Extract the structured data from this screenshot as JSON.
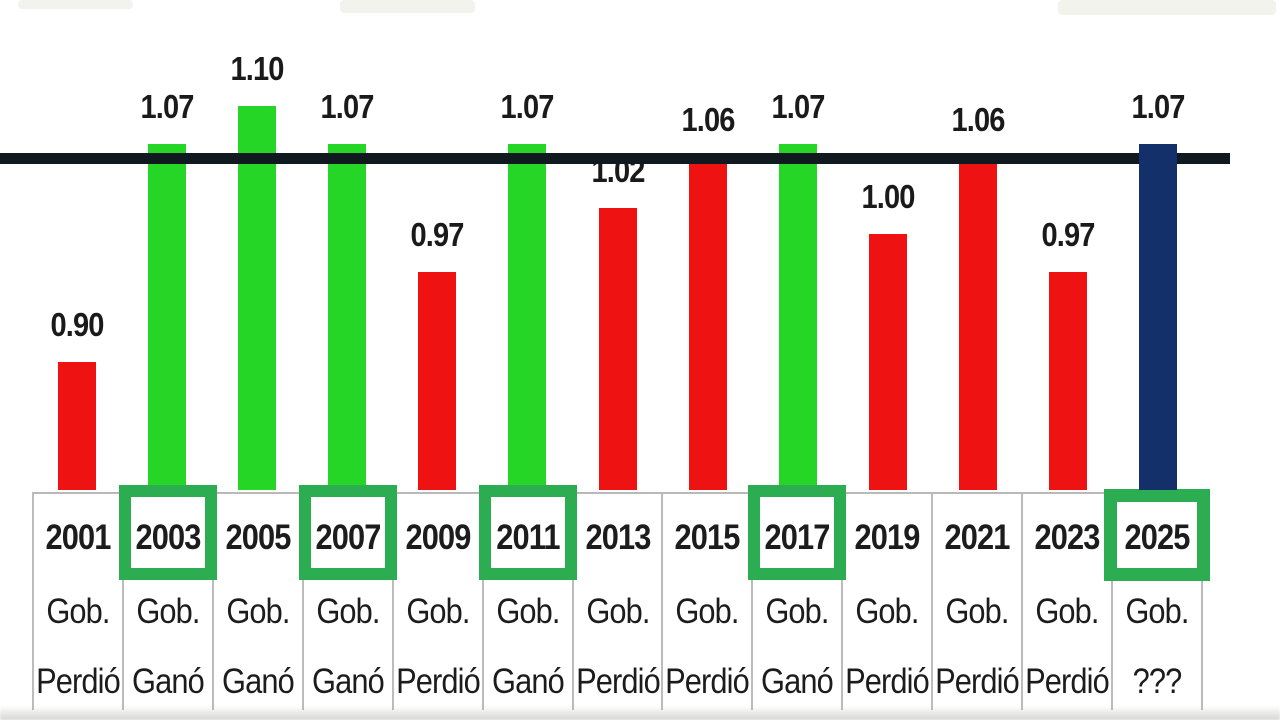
{
  "colors": {
    "red": "#ee1212",
    "green": "#26d626",
    "navy": "#13306b",
    "highlight_box_green": "#2cad52",
    "reference_line": "#101820",
    "grid_gray": "#bcbcbc",
    "text": "#1c1c1c"
  },
  "chart_data": {
    "type": "bar",
    "title": "",
    "xlabel": "",
    "ylabel": "",
    "ylim": [
      0.8,
      1.12
    ],
    "grid": false,
    "legend": false,
    "reference_line_value": 1.07,
    "categories": [
      "2001",
      "2003",
      "2005",
      "2007",
      "2009",
      "2011",
      "2013",
      "2015",
      "2017",
      "2019",
      "2021",
      "2023",
      "2025"
    ],
    "values": [
      0.9,
      1.07,
      1.1,
      1.07,
      0.97,
      1.07,
      1.02,
      1.06,
      1.07,
      1.0,
      1.06,
      0.97,
      1.07
    ],
    "columns": [
      {
        "year": "2001",
        "value": 0.9,
        "value_label": "0.90",
        "org_label": "Gob.",
        "result": "Perdió",
        "color_key": "red",
        "highlighted": false
      },
      {
        "year": "2003",
        "value": 1.07,
        "value_label": "1.07",
        "org_label": "Gob.",
        "result": "Ganó",
        "color_key": "green",
        "highlighted": true
      },
      {
        "year": "2005",
        "value": 1.1,
        "value_label": "1.10",
        "org_label": "Gob.",
        "result": "Ganó",
        "color_key": "green",
        "highlighted": false
      },
      {
        "year": "2007",
        "value": 1.07,
        "value_label": "1.07",
        "org_label": "Gob.",
        "result": "Ganó",
        "color_key": "green",
        "highlighted": true
      },
      {
        "year": "2009",
        "value": 0.97,
        "value_label": "0.97",
        "org_label": "Gob.",
        "result": "Perdió",
        "color_key": "red",
        "highlighted": false
      },
      {
        "year": "2011",
        "value": 1.07,
        "value_label": "1.07",
        "org_label": "Gob.",
        "result": "Ganó",
        "color_key": "green",
        "highlighted": true
      },
      {
        "year": "2013",
        "value": 1.02,
        "value_label": "1.02",
        "org_label": "Gob.",
        "result": "Perdió",
        "color_key": "red",
        "highlighted": false
      },
      {
        "year": "2015",
        "value": 1.06,
        "value_label": "1.06",
        "org_label": "Gob.",
        "result": "Perdió",
        "color_key": "red",
        "highlighted": false
      },
      {
        "year": "2017",
        "value": 1.07,
        "value_label": "1.07",
        "org_label": "Gob.",
        "result": "Ganó",
        "color_key": "green",
        "highlighted": true
      },
      {
        "year": "2019",
        "value": 1.0,
        "value_label": "1.00",
        "org_label": "Gob.",
        "result": "Perdió",
        "color_key": "red",
        "highlighted": false
      },
      {
        "year": "2021",
        "value": 1.06,
        "value_label": "1.06",
        "org_label": "Gob.",
        "result": "Perdió",
        "color_key": "red",
        "highlighted": false
      },
      {
        "year": "2023",
        "value": 0.97,
        "value_label": "0.97",
        "org_label": "Gob.",
        "result": "Perdió",
        "color_key": "red",
        "highlighted": false
      },
      {
        "year": "2025",
        "value": 1.07,
        "value_label": "1.07",
        "org_label": "Gob.",
        "result": "???",
        "color_key": "navy",
        "highlighted": true
      }
    ]
  }
}
